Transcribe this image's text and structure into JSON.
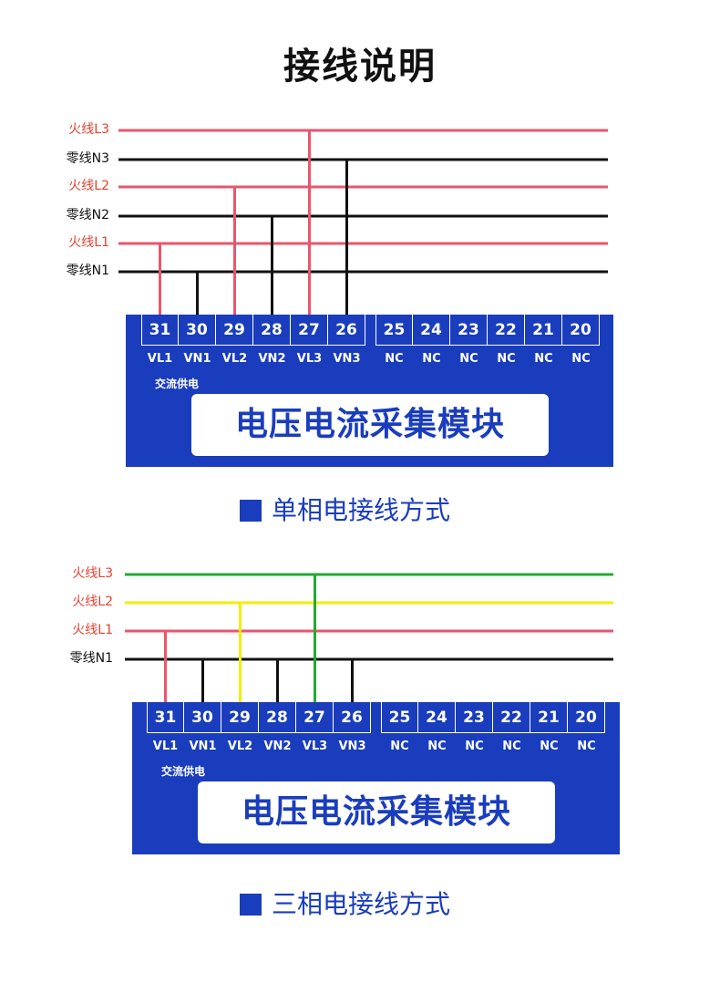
{
  "title": "接线说明",
  "colors": {
    "module_blue": "#1a3dbd",
    "live_label": "#e8412f",
    "live_wire": "#e9566c",
    "neutral": "#111111",
    "green": "#22aa33",
    "yellow": "#f2ee00"
  },
  "diagrams": [
    {
      "caption": "单相电接线方式",
      "module_name": "电压电流采集模块",
      "supply_label": "交流供电",
      "lines": [
        {
          "label": "火线L3",
          "color": "#e9566c",
          "label_color": "#e8412f"
        },
        {
          "label": "零线N3",
          "color": "#111111",
          "label_color": "#111111"
        },
        {
          "label": "火线L2",
          "color": "#e9566c",
          "label_color": "#e8412f"
        },
        {
          "label": "零线N2",
          "color": "#111111",
          "label_color": "#111111"
        },
        {
          "label": "火线L1",
          "color": "#e9566c",
          "label_color": "#e8412f"
        },
        {
          "label": "零线N1",
          "color": "#111111",
          "label_color": "#111111"
        }
      ],
      "terminals_left": [
        {
          "num": "31",
          "pin": "VL1",
          "connects_to": "火线L1"
        },
        {
          "num": "30",
          "pin": "VN1",
          "connects_to": "零线N1"
        },
        {
          "num": "29",
          "pin": "VL2",
          "connects_to": "火线L2"
        },
        {
          "num": "28",
          "pin": "VN2",
          "connects_to": "零线N2"
        },
        {
          "num": "27",
          "pin": "VL3",
          "connects_to": "火线L3"
        },
        {
          "num": "26",
          "pin": "VN3",
          "connects_to": "零线N3"
        }
      ],
      "terminals_right": [
        {
          "num": "25",
          "pin": "NC"
        },
        {
          "num": "24",
          "pin": "NC"
        },
        {
          "num": "23",
          "pin": "NC"
        },
        {
          "num": "22",
          "pin": "NC"
        },
        {
          "num": "21",
          "pin": "NC"
        },
        {
          "num": "20",
          "pin": "NC"
        }
      ]
    },
    {
      "caption": "三相电接线方式",
      "module_name": "电压电流采集模块",
      "supply_label": "交流供电",
      "lines": [
        {
          "label": "火线L3",
          "color": "#22aa33",
          "label_color": "#e8412f"
        },
        {
          "label": "火线L2",
          "color": "#f2ee00",
          "label_color": "#e8412f"
        },
        {
          "label": "火线L1",
          "color": "#e9566c",
          "label_color": "#e8412f"
        },
        {
          "label": "零线N1",
          "color": "#111111",
          "label_color": "#111111"
        }
      ],
      "terminals_left": [
        {
          "num": "31",
          "pin": "VL1",
          "connects_to": "火线L1"
        },
        {
          "num": "30",
          "pin": "VN1",
          "connects_to": "零线N1"
        },
        {
          "num": "29",
          "pin": "VL2",
          "connects_to": "火线L2"
        },
        {
          "num": "28",
          "pin": "VN2",
          "connects_to": "零线N1"
        },
        {
          "num": "27",
          "pin": "VL3",
          "connects_to": "火线L3"
        },
        {
          "num": "26",
          "pin": "VN3",
          "connects_to": "零线N1"
        }
      ],
      "terminals_right": [
        {
          "num": "25",
          "pin": "NC"
        },
        {
          "num": "24",
          "pin": "NC"
        },
        {
          "num": "23",
          "pin": "NC"
        },
        {
          "num": "22",
          "pin": "NC"
        },
        {
          "num": "21",
          "pin": "NC"
        },
        {
          "num": "20",
          "pin": "NC"
        }
      ]
    }
  ]
}
